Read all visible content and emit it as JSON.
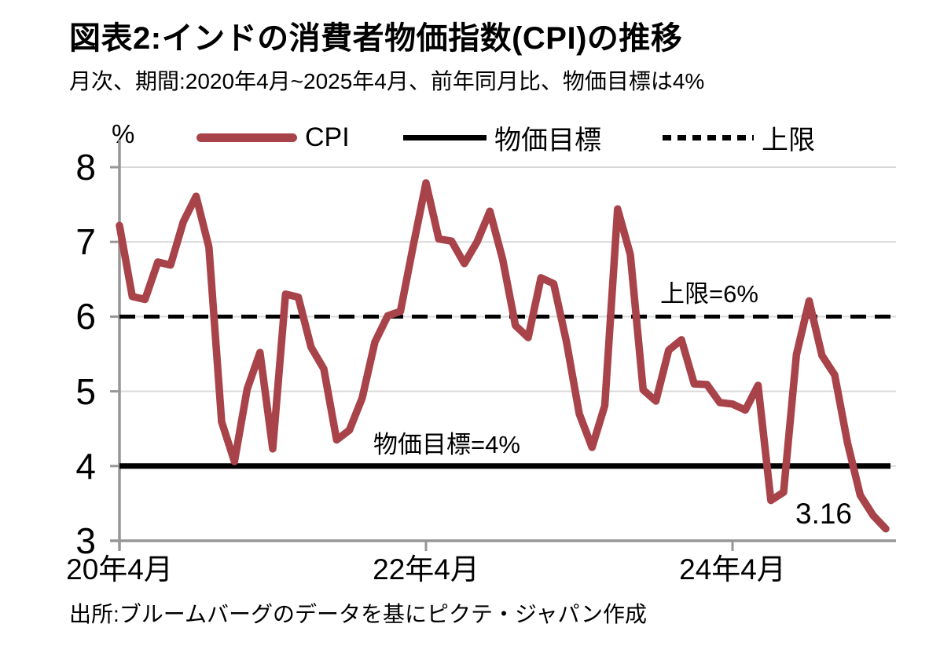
{
  "title": "図表2:インドの消費者物価指数(CPI)の推移",
  "subtitle": "月次、期間:2020年4月~2025年4月、前年同月比、物価目標は4%",
  "unit_label": "%",
  "legend": {
    "cpi": "CPI",
    "target": "物価目標",
    "upper": "上限"
  },
  "annotations": {
    "upper": "上限=6%",
    "target": "物価目標=4%",
    "last_value": "3.16"
  },
  "source": "出所:ブルームバーグのデータを基にピクテ・ジャパン作成",
  "colors": {
    "cpi": "#A8434A",
    "target": "#000000",
    "upper": "#000000",
    "grid": "#D9D9D9",
    "axis": "#969696",
    "text": "#000000"
  },
  "chart_data": {
    "type": "line",
    "title": "図表2:インドの消費者物価指数(CPI)の推移",
    "ylabel": "%",
    "ylim": [
      3,
      8
    ],
    "yticks": [
      3,
      4,
      5,
      6,
      7,
      8
    ],
    "grid": true,
    "legend_position": "top",
    "x": [
      "2020-04",
      "2020-05",
      "2020-06",
      "2020-07",
      "2020-08",
      "2020-09",
      "2020-10",
      "2020-11",
      "2020-12",
      "2021-01",
      "2021-02",
      "2021-03",
      "2021-04",
      "2021-05",
      "2021-06",
      "2021-07",
      "2021-08",
      "2021-09",
      "2021-10",
      "2021-11",
      "2021-12",
      "2022-01",
      "2022-02",
      "2022-03",
      "2022-04",
      "2022-05",
      "2022-06",
      "2022-07",
      "2022-08",
      "2022-09",
      "2022-10",
      "2022-11",
      "2022-12",
      "2023-01",
      "2023-02",
      "2023-03",
      "2023-04",
      "2023-05",
      "2023-06",
      "2023-07",
      "2023-08",
      "2023-09",
      "2023-10",
      "2023-11",
      "2023-12",
      "2024-01",
      "2024-02",
      "2024-03",
      "2024-04",
      "2024-05",
      "2024-06",
      "2024-07",
      "2024-08",
      "2024-09",
      "2024-10",
      "2024-11",
      "2024-12",
      "2025-01",
      "2025-02",
      "2025-03",
      "2025-04"
    ],
    "xtick_indices": [
      0,
      24,
      48
    ],
    "xtick_labels": [
      "20年4月",
      "22年4月",
      "24年4月"
    ],
    "series": [
      {
        "name": "CPI",
        "style": "solid",
        "color": "#A8434A",
        "values": [
          7.22,
          6.27,
          6.23,
          6.73,
          6.69,
          7.27,
          7.61,
          6.93,
          4.59,
          4.06,
          5.03,
          5.52,
          4.23,
          6.3,
          6.26,
          5.59,
          5.3,
          4.35,
          4.48,
          4.91,
          5.66,
          6.01,
          6.07,
          6.95,
          7.79,
          7.04,
          7.01,
          6.71,
          7.0,
          7.41,
          6.77,
          5.88,
          5.72,
          6.52,
          6.44,
          5.66,
          4.7,
          4.25,
          4.81,
          7.44,
          6.83,
          5.02,
          4.87,
          5.55,
          5.69,
          5.1,
          5.09,
          4.85,
          4.83,
          4.75,
          5.08,
          3.54,
          3.65,
          5.49,
          6.21,
          5.48,
          5.22,
          4.31,
          3.61,
          3.34,
          3.16
        ]
      },
      {
        "name": "物価目標",
        "style": "solid",
        "color": "#000000",
        "constant": 4.0
      },
      {
        "name": "上限",
        "style": "dashed",
        "color": "#000000",
        "constant": 6.0
      }
    ],
    "last_value_label": "3.16"
  }
}
